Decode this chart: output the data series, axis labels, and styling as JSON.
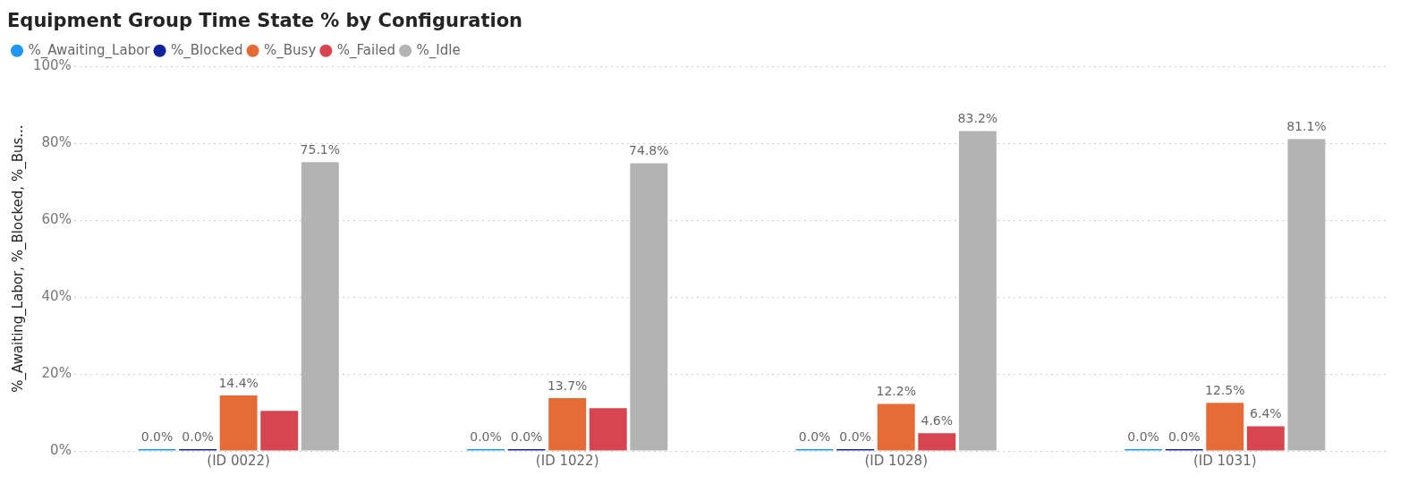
{
  "chart_data": {
    "type": "bar",
    "title": "Equipment Group Time State % by Configuration",
    "ylabel": "%_Awaiting_Labor, %_Blocked, %_Bus...",
    "categories": [
      "(ID 0022)",
      "(ID 1022)",
      "(ID 1028)",
      "(ID 1031)"
    ],
    "series": [
      {
        "name": "%_Awaiting_Labor",
        "color": "#2196f3",
        "values": [
          0,
          0,
          0,
          0
        ],
        "value_labels": [
          "0.0%",
          "0.0%",
          "0.0%",
          "0.0%"
        ]
      },
      {
        "name": "%_Blocked",
        "color": "#12239e",
        "values": [
          0,
          0,
          0,
          0
        ],
        "value_labels": [
          "0.0%",
          "0.0%",
          "0.0%",
          "0.0%"
        ]
      },
      {
        "name": "%_Busy",
        "color": "#e66c37",
        "values": [
          14.4,
          13.7,
          12.2,
          12.5
        ],
        "value_labels": [
          "14.4%",
          "13.7%",
          "12.2%",
          "12.5%"
        ]
      },
      {
        "name": "%_Failed",
        "color": "#d64550",
        "values": [
          10.4,
          11.1,
          4.6,
          6.4
        ],
        "value_labels": [
          null,
          null,
          "4.6%",
          "6.4%"
        ]
      },
      {
        "name": "%_Idle",
        "color": "#b3b3b3",
        "values": [
          75.1,
          74.8,
          83.2,
          81.1
        ],
        "value_labels": [
          "75.1%",
          "74.8%",
          "83.2%",
          "81.1%"
        ]
      }
    ],
    "ylim": [
      0,
      100
    ],
    "yticks": [
      {
        "value": 0,
        "label": "0%"
      },
      {
        "value": 20,
        "label": "20%"
      },
      {
        "value": 40,
        "label": "40%"
      },
      {
        "value": 60,
        "label": "60%"
      },
      {
        "value": 80,
        "label": "80%"
      },
      {
        "value": 100,
        "label": "100%"
      }
    ],
    "grid": "y",
    "legend": "top left"
  }
}
